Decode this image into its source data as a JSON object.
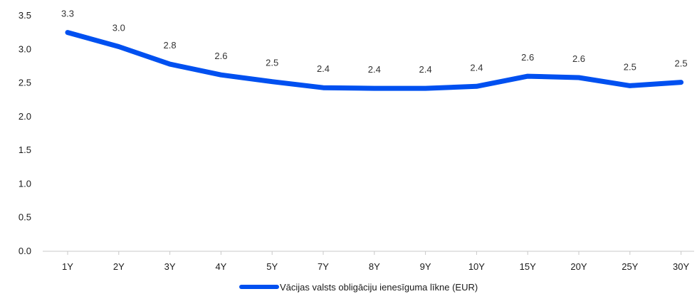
{
  "colors": {
    "series": "#0050f0",
    "axis": "#c8c8c8",
    "text": "#1a1a1a"
  },
  "chart_data": {
    "type": "line",
    "title": "",
    "xlabel": "",
    "ylabel": "",
    "ylim": [
      0,
      3.5
    ],
    "yticks": [
      "0.0",
      "0.5",
      "1.0",
      "1.5",
      "2.0",
      "2.5",
      "3.0",
      "3.5"
    ],
    "grid": false,
    "legend_position": "bottom",
    "categories": [
      "1Y",
      "2Y",
      "3Y",
      "4Y",
      "5Y",
      "7Y",
      "8Y",
      "9Y",
      "10Y",
      "15Y",
      "20Y",
      "25Y",
      "30Y"
    ],
    "series": [
      {
        "name": "Vācijas valsts obligāciju ienesīguma līkne (EUR)",
        "values": [
          3.25,
          3.04,
          2.78,
          2.62,
          2.52,
          2.43,
          2.42,
          2.42,
          2.45,
          2.6,
          2.58,
          2.46,
          2.51
        ],
        "labels": [
          "3.3",
          "3.0",
          "2.8",
          "2.6",
          "2.5",
          "2.4",
          "2.4",
          "2.4",
          "2.4",
          "2.6",
          "2.6",
          "2.5",
          "2.5"
        ]
      }
    ]
  }
}
